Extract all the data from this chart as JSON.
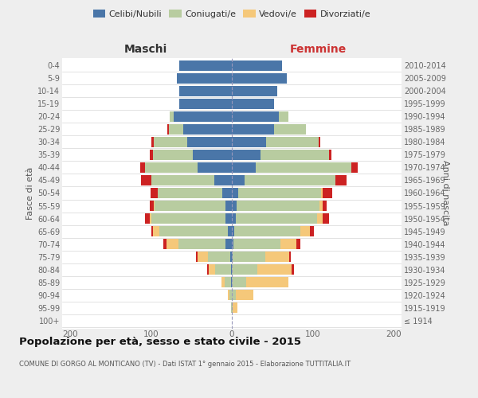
{
  "age_groups": [
    "100+",
    "95-99",
    "90-94",
    "85-89",
    "80-84",
    "75-79",
    "70-74",
    "65-69",
    "60-64",
    "55-59",
    "50-54",
    "45-49",
    "40-44",
    "35-39",
    "30-34",
    "25-29",
    "20-24",
    "15-19",
    "10-14",
    "5-9",
    "0-4"
  ],
  "birth_years": [
    "≤ 1914",
    "1915-1919",
    "1920-1924",
    "1925-1929",
    "1930-1934",
    "1935-1939",
    "1940-1944",
    "1945-1949",
    "1950-1954",
    "1955-1959",
    "1960-1964",
    "1965-1969",
    "1970-1974",
    "1975-1979",
    "1980-1984",
    "1985-1989",
    "1990-1994",
    "1995-1999",
    "2000-2004",
    "2005-2009",
    "2010-2014"
  ],
  "maschi": {
    "celibi": [
      0,
      0,
      0,
      1,
      1,
      2,
      8,
      5,
      8,
      8,
      12,
      22,
      42,
      48,
      55,
      60,
      72,
      65,
      65,
      68,
      65
    ],
    "coniugati": [
      0,
      1,
      3,
      8,
      20,
      28,
      58,
      85,
      92,
      88,
      80,
      78,
      65,
      50,
      42,
      18,
      5,
      0,
      0,
      0,
      0
    ],
    "vedovi": [
      0,
      0,
      2,
      4,
      8,
      12,
      15,
      8,
      2,
      1,
      0,
      0,
      0,
      0,
      0,
      0,
      0,
      0,
      0,
      0,
      0
    ],
    "divorziati": [
      0,
      0,
      0,
      0,
      2,
      2,
      4,
      2,
      5,
      5,
      9,
      12,
      6,
      4,
      3,
      2,
      0,
      0,
      0,
      0,
      0
    ]
  },
  "femmine": {
    "nubili": [
      0,
      0,
      0,
      0,
      0,
      1,
      2,
      3,
      5,
      6,
      8,
      16,
      30,
      35,
      42,
      52,
      58,
      52,
      56,
      68,
      62
    ],
    "coniugate": [
      0,
      1,
      5,
      18,
      32,
      40,
      58,
      82,
      100,
      102,
      102,
      112,
      118,
      85,
      65,
      40,
      12,
      0,
      0,
      0,
      0
    ],
    "vedove": [
      0,
      6,
      22,
      52,
      42,
      30,
      20,
      12,
      7,
      4,
      2,
      0,
      0,
      0,
      0,
      0,
      0,
      0,
      0,
      0,
      0
    ],
    "divorziate": [
      0,
      0,
      0,
      0,
      3,
      2,
      5,
      5,
      8,
      5,
      12,
      14,
      8,
      3,
      2,
      0,
      0,
      0,
      0,
      0,
      0
    ]
  },
  "colors": {
    "celibi": "#4a76a8",
    "coniugati": "#b8cca0",
    "vedovi": "#f5c87a",
    "divorziati": "#cc2222"
  },
  "xlim": 210,
  "title": "Popolazione per età, sesso e stato civile - 2015",
  "subtitle": "COMUNE DI GORGO AL MONTICANO (TV) - Dati ISTAT 1° gennaio 2015 - Elaborazione TUTTITALIA.IT",
  "label_maschi": "Maschi",
  "label_femmine": "Femmine",
  "ylabel_left": "Fasce di età",
  "ylabel_right": "Anni di nascita",
  "bg_color": "#eeeeee",
  "plot_bg": "#ffffff"
}
